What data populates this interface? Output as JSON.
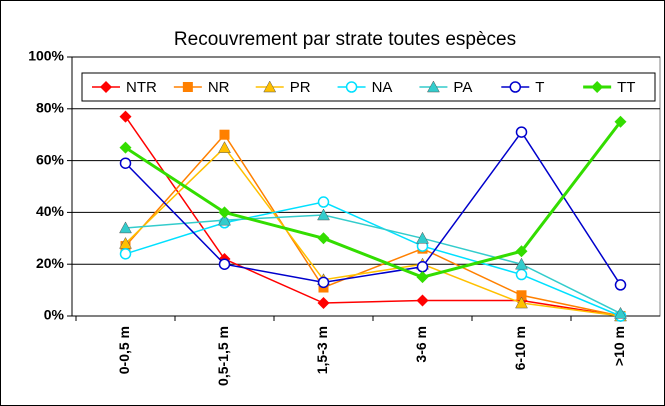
{
  "chart_data": {
    "type": "line",
    "title": "Recouvrement par strate toutes espèces",
    "categories": [
      "0-0,5 m",
      "0,5-1,5 m",
      "1,5-3 m",
      "3-6 m",
      "6-10 m",
      ">10 m"
    ],
    "series": [
      {
        "name": "NTR",
        "color": "#ff0000",
        "marker": "diamond",
        "values": [
          77,
          22,
          5,
          6,
          6,
          0
        ]
      },
      {
        "name": "NR",
        "color": "#ff8000",
        "marker": "square",
        "values": [
          27,
          70,
          11,
          26,
          8,
          0
        ]
      },
      {
        "name": "PR",
        "color": "#ffc000",
        "marker": "triangle",
        "values": [
          28,
          65,
          14,
          20,
          5,
          0
        ]
      },
      {
        "name": "NA",
        "color": "#00e0ff",
        "marker": "circle",
        "values": [
          24,
          36,
          44,
          27,
          16,
          0
        ]
      },
      {
        "name": "PA",
        "color": "#33cccc",
        "marker": "triangle",
        "values": [
          34,
          37,
          39,
          30,
          20,
          1
        ]
      },
      {
        "name": "T",
        "color": "#0000cc",
        "marker": "circle",
        "values": [
          59,
          20,
          13,
          19,
          71,
          12
        ]
      },
      {
        "name": "TT",
        "color": "#33dd00",
        "marker": "diamond",
        "values": [
          65,
          40,
          30,
          15,
          25,
          75
        ]
      }
    ],
    "ylim": [
      0,
      100
    ],
    "yticks": [
      {
        "value": 0,
        "label": "0%"
      },
      {
        "value": 20,
        "label": "20%"
      },
      {
        "value": 40,
        "label": "40%"
      },
      {
        "value": 60,
        "label": "60%"
      },
      {
        "value": 80,
        "label": "80%"
      },
      {
        "value": 100,
        "label": "100%"
      }
    ],
    "grid": true,
    "legend": "top"
  }
}
